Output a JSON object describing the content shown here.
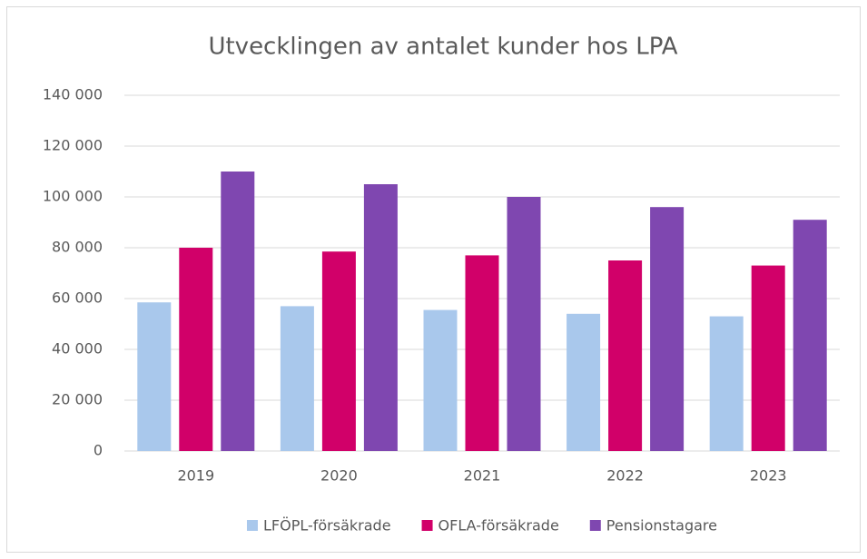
{
  "chart_data": {
    "type": "bar",
    "title": "Utvecklingen av antalet kunder hos LPA",
    "categories": [
      "2019",
      "2020",
      "2021",
      "2022",
      "2023"
    ],
    "series": [
      {
        "name": "LFÖPL-försäkrade",
        "color": "#a9c8ec",
        "values": [
          58500,
          57000,
          55500,
          54000,
          53000
        ]
      },
      {
        "name": "OFLA-försäkrade",
        "color": "#d10069",
        "values": [
          80000,
          78500,
          77000,
          75000,
          73000
        ]
      },
      {
        "name": "Pensionstagare",
        "color": "#7f47b0",
        "values": [
          110000,
          105000,
          100000,
          96000,
          91000
        ]
      }
    ],
    "ylim": [
      0,
      140000
    ],
    "yticks": [
      0,
      {
        "value": 20000,
        "label": "20 000"
      },
      {
        "value": 40000,
        "label": "40 000"
      },
      {
        "value": 60000,
        "label": "60 000"
      },
      {
        "value": 80000,
        "label": "80 000"
      },
      {
        "value": 100000,
        "label": "100 000"
      },
      {
        "value": 120000,
        "label": "120 000"
      },
      {
        "value": 140000,
        "label": "140 000"
      }
    ],
    "grid": true,
    "legend": "bottom"
  }
}
